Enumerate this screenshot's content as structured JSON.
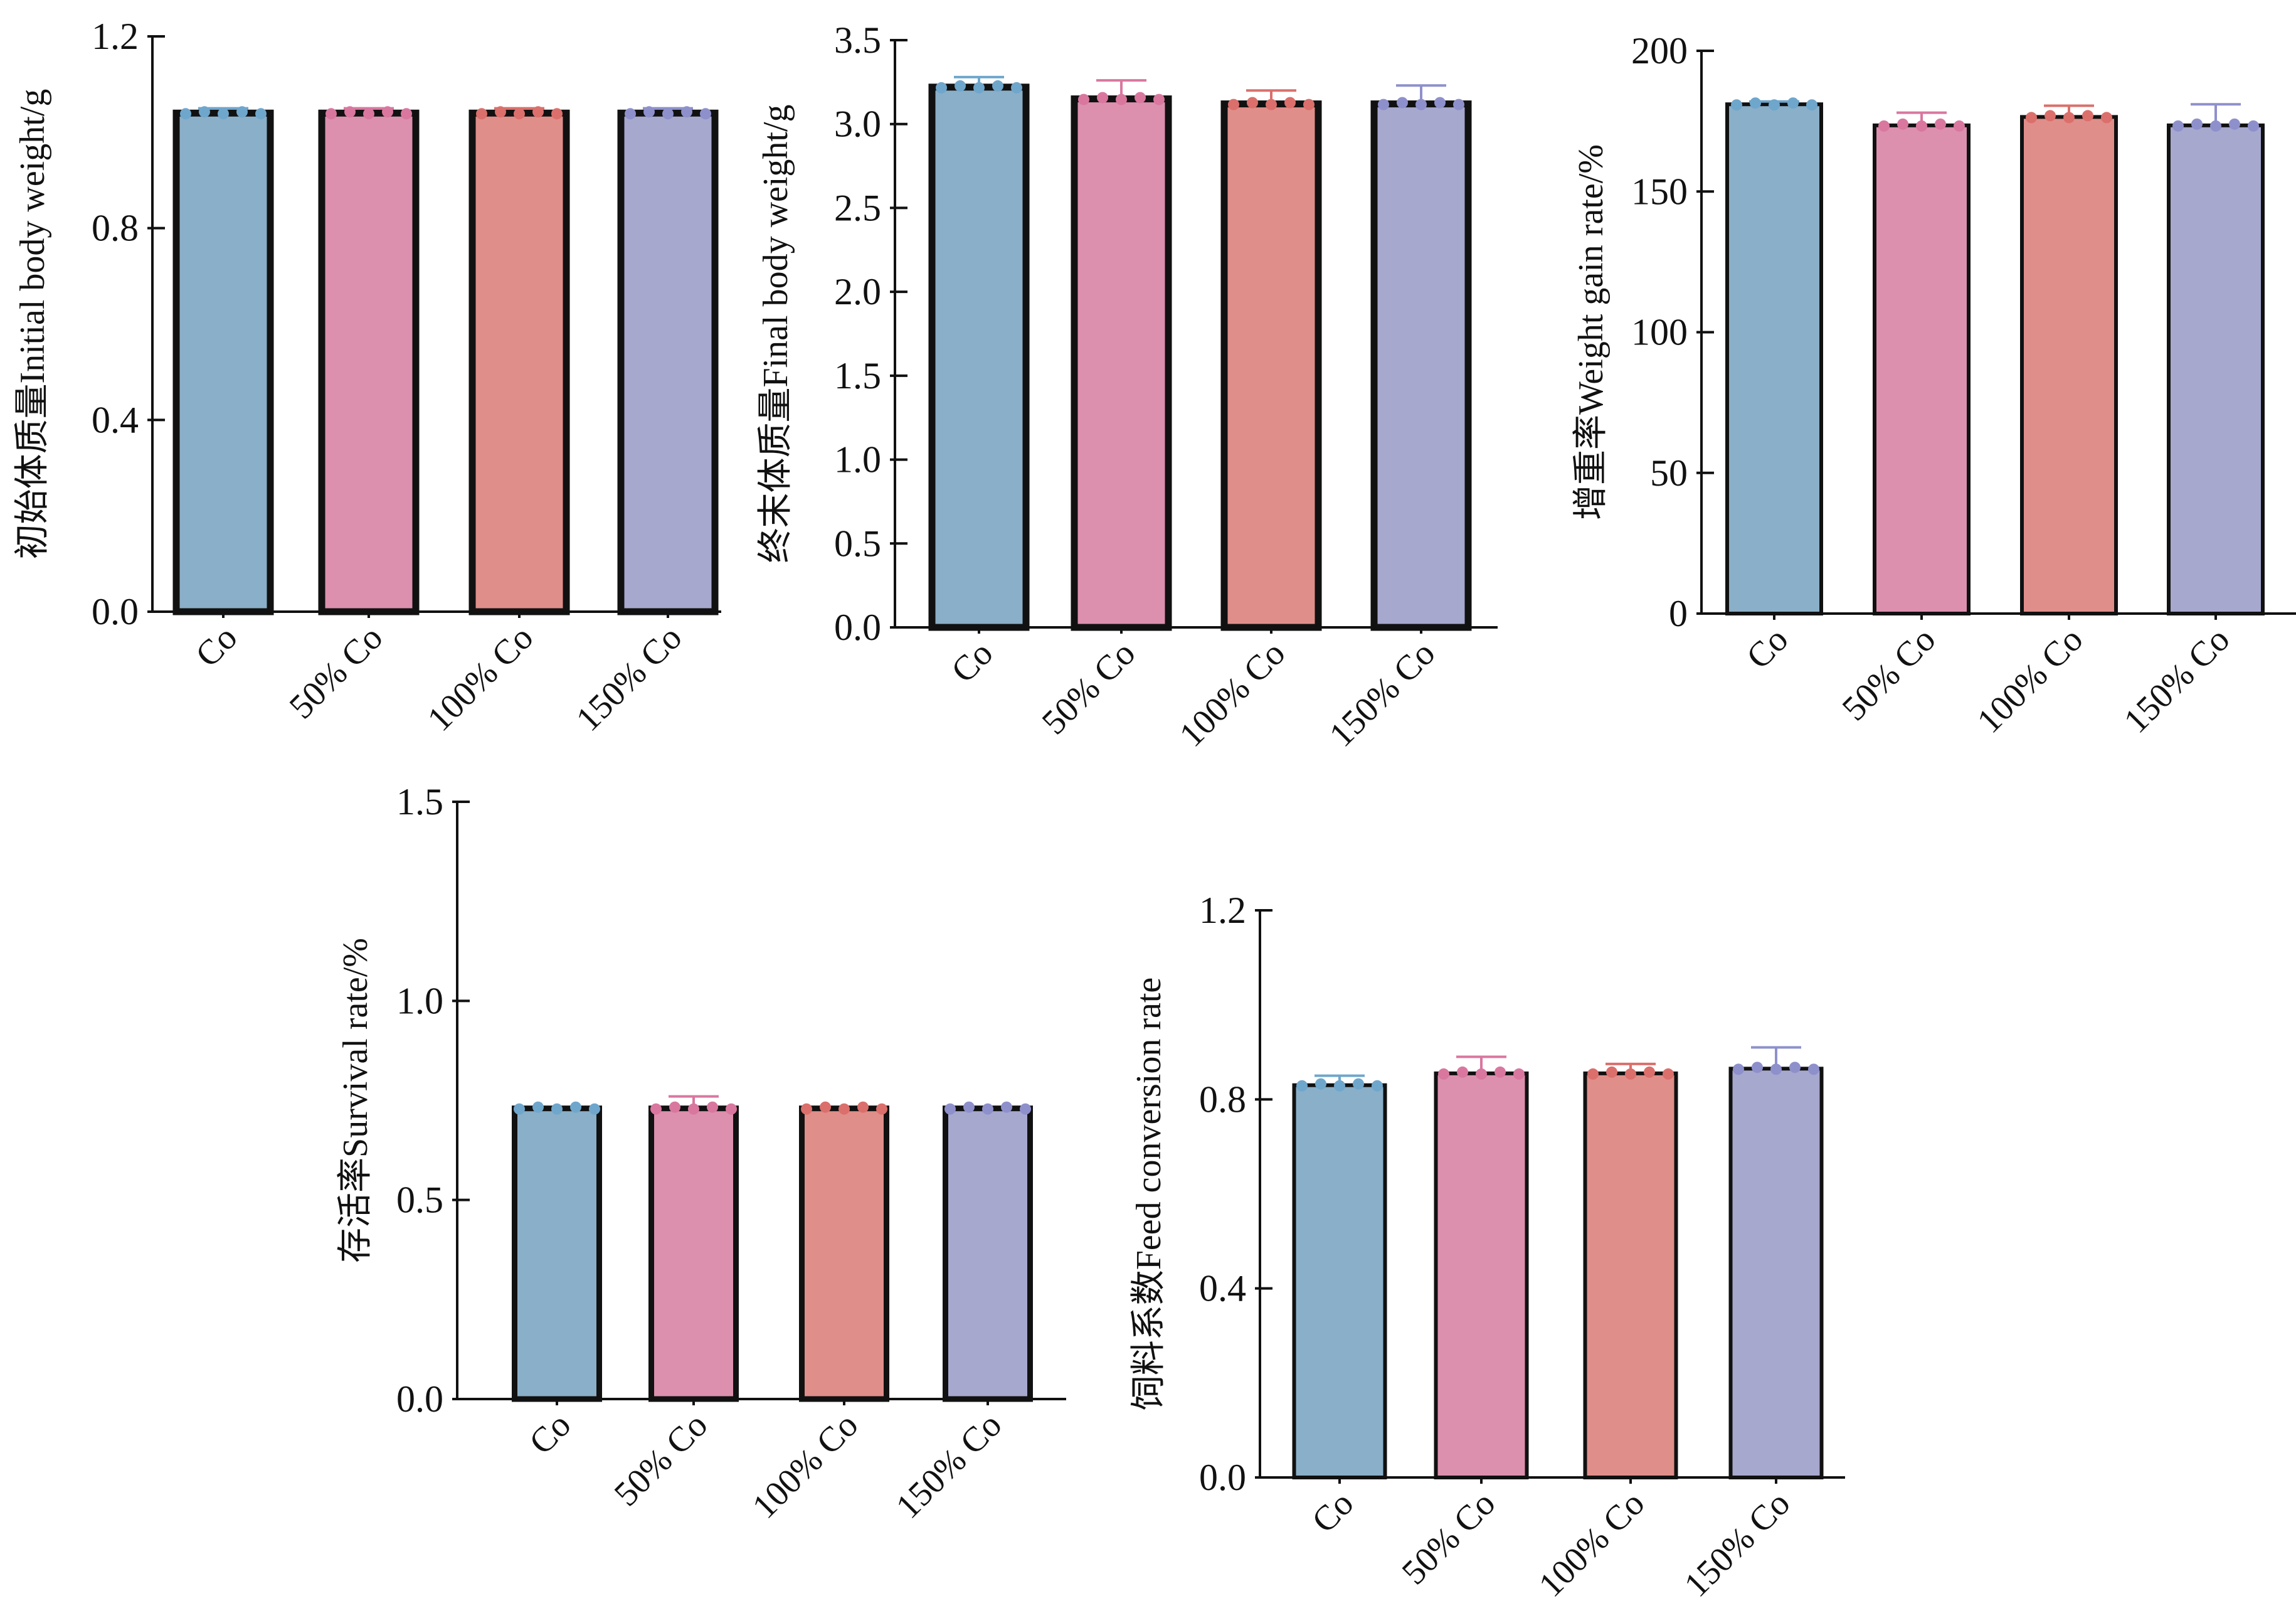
{
  "colors": {
    "groups": [
      "#8AAFC8",
      "#DC90AE",
      "#E08E8A",
      "#A6A8CE"
    ],
    "errors": [
      "#6FA6CC",
      "#D9779F",
      "#DB6F6B",
      "#8E90CC"
    ],
    "outline": "#111111"
  },
  "chart_data": [
    {
      "type": "bar",
      "ylabel": "初始体质量Initial body weight/g",
      "categories": [
        "Co",
        "50% Co",
        "100% Co",
        "150% Co"
      ],
      "values": [
        1.04,
        1.04,
        1.04,
        1.04
      ],
      "error_upper": [
        1.05,
        1.05,
        1.05,
        1.05
      ],
      "ylim": [
        0,
        1.2
      ],
      "yticks": [
        "0.0",
        "0.4",
        "0.8",
        "1.2"
      ],
      "grid": false
    },
    {
      "type": "bar",
      "ylabel": "终末体质量Final body weight/g",
      "categories": [
        "Co",
        "50% Co",
        "100% Co",
        "150% Co"
      ],
      "values": [
        3.22,
        3.15,
        3.12,
        3.12
      ],
      "error_upper": [
        3.28,
        3.26,
        3.2,
        3.23
      ],
      "ylim": [
        0,
        3.5
      ],
      "yticks": [
        "0.0",
        "0.5",
        "1.0",
        "1.5",
        "2.0",
        "2.5",
        "3.0",
        "3.5"
      ],
      "grid": false
    },
    {
      "type": "bar",
      "ylabel": "增重率Weight gain rate/%",
      "categories": [
        "Co",
        "50% Co",
        "100% Co",
        "150% Co"
      ],
      "values": [
        181,
        173.5,
        176.5,
        173.5
      ],
      "error_upper": [
        182,
        178,
        180.5,
        181
      ],
      "ylim": [
        0,
        200
      ],
      "yticks": [
        "0",
        "50",
        "100",
        "150",
        "200"
      ],
      "grid": false
    },
    {
      "type": "bar",
      "ylabel": "存活率Survival rate/%",
      "categories": [
        "Co",
        "50% Co",
        "100% Co",
        "150% Co"
      ],
      "values": [
        0.73,
        0.73,
        0.73,
        0.73
      ],
      "error_upper": [
        0.73,
        0.76,
        0.73,
        0.73
      ],
      "ylim": [
        0,
        1.5
      ],
      "yticks": [
        "0.0",
        "0.5",
        "1.0",
        "1.5"
      ],
      "grid": false
    },
    {
      "type": "bar",
      "ylabel": "饲料系数Feed conversion rate",
      "categories": [
        "Co",
        "50% Co",
        "100% Co",
        "150% Co"
      ],
      "values": [
        0.83,
        0.855,
        0.855,
        0.865
      ],
      "error_upper": [
        0.85,
        0.89,
        0.875,
        0.91
      ],
      "ylim": [
        0,
        1.2
      ],
      "yticks": [
        "0.0",
        "0.4",
        "0.8",
        "1.2"
      ],
      "grid": false
    }
  ]
}
